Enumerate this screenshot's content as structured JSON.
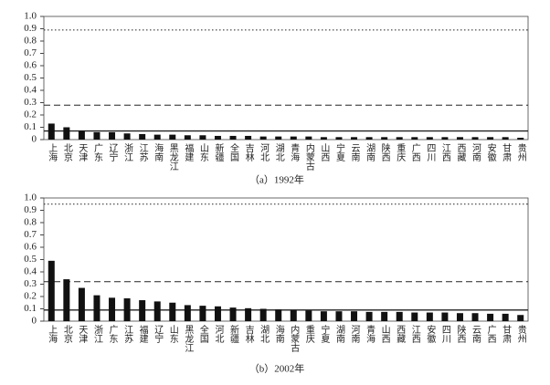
{
  "chart_data": [
    {
      "type": "bar",
      "title": "（a）1992年",
      "categories": [
        "上海",
        "北京",
        "天津",
        "广东",
        "辽宁",
        "浙江",
        "江苏",
        "海南",
        "黑龙江",
        "福建",
        "山东",
        "新疆",
        "全国",
        "吉林",
        "河北",
        "湖北",
        "青海",
        "内蒙古",
        "山西",
        "宁夏",
        "云南",
        "湖南",
        "陕西",
        "重庆",
        "广西",
        "四川",
        "江西",
        "西藏",
        "河南",
        "安徽",
        "甘肃",
        "贵州"
      ],
      "values": [
        0.13,
        0.1,
        0.07,
        0.06,
        0.06,
        0.05,
        0.045,
        0.04,
        0.04,
        0.035,
        0.035,
        0.03,
        0.03,
        0.03,
        0.025,
        0.025,
        0.025,
        0.025,
        0.02,
        0.02,
        0.02,
        0.02,
        0.02,
        0.02,
        0.02,
        0.02,
        0.02,
        0.02,
        0.02,
        0.02,
        0.02,
        0.015
      ],
      "color": "#111111",
      "ylim": [
        0,
        1
      ],
      "yticks": [
        0,
        0.1,
        0.2,
        0.3,
        0.4,
        0.5,
        0.6,
        0.7,
        0.8,
        0.9,
        {
          "value": 1,
          "label": "1.0"
        }
      ],
      "hlines": [
        {
          "value": 0.89,
          "style": "dotted"
        },
        {
          "value": 0.28,
          "style": "dashed"
        },
        {
          "value": 0.07,
          "style": "solid"
        }
      ]
    },
    {
      "type": "bar",
      "title": "（b）2002年",
      "categories": [
        "上海",
        "北京",
        "天津",
        "浙江",
        "广东",
        "江苏",
        "福建",
        "辽宁",
        "山东",
        "黑龙江",
        "全国",
        "河北",
        "新疆",
        "吉林",
        "湖北",
        "海南",
        "内蒙古",
        "重庆",
        "宁夏",
        "湖南",
        "河南",
        "青海",
        "山西",
        "西藏",
        "江西",
        "安徽",
        "四川",
        "陕西",
        "云南",
        "广西",
        "甘肃",
        "贵州"
      ],
      "values": [
        0.49,
        0.34,
        0.27,
        0.21,
        0.19,
        0.185,
        0.17,
        0.16,
        0.15,
        0.13,
        0.125,
        0.12,
        0.11,
        0.105,
        0.1,
        0.095,
        0.09,
        0.085,
        0.08,
        0.08,
        0.08,
        0.075,
        0.075,
        0.075,
        0.07,
        0.07,
        0.07,
        0.065,
        0.065,
        0.06,
        0.06,
        0.05
      ],
      "color": "#111111",
      "ylim": [
        0,
        1
      ],
      "yticks": [
        0,
        0.1,
        0.2,
        0.3,
        0.4,
        0.5,
        0.6,
        0.7,
        0.8,
        0.9,
        {
          "value": 1,
          "label": "1.0"
        }
      ],
      "hlines": [
        {
          "value": 0.95,
          "style": "dotted"
        },
        {
          "value": 0.32,
          "style": "dashed"
        },
        {
          "value": 0.09,
          "style": "solid"
        }
      ]
    }
  ]
}
